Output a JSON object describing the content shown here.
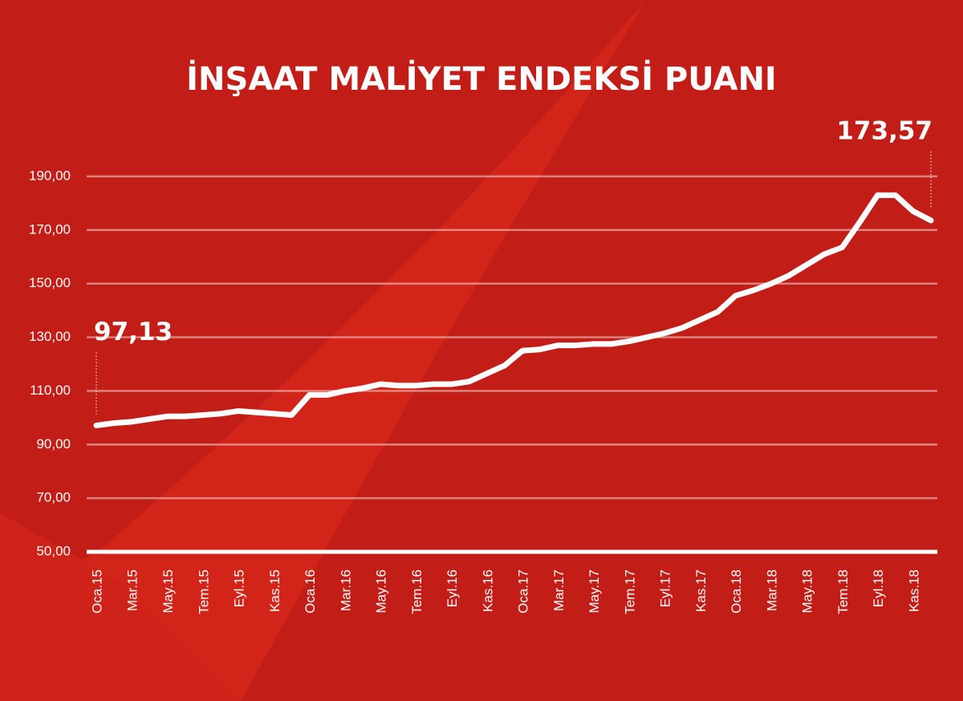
{
  "chart_data": {
    "type": "line",
    "title": "İNŞAAT MALİYET ENDEKSİ PUANI",
    "categories": [
      "Oca.15",
      null,
      "Mar.15",
      null,
      "May.15",
      null,
      "Tem.15",
      null,
      "Eyl.15",
      null,
      "Kas.15",
      null,
      "Oca.16",
      null,
      "Mar.16",
      null,
      "May.16",
      null,
      "Tem.16",
      null,
      "Eyl.16",
      null,
      "Kas.16",
      null,
      "Oca.17",
      null,
      "Mar.17",
      null,
      "May.17",
      null,
      "Tem.17",
      null,
      "Eyl.17",
      null,
      "Kas.17",
      null,
      "Oca.18",
      null,
      "Mar.18",
      null,
      "May.18",
      null,
      "Tem.18",
      null,
      "Eyl.18",
      null,
      "Kas.18",
      null
    ],
    "values": [
      97.13,
      98,
      98.5,
      99.5,
      100.5,
      100.5,
      101,
      101.5,
      102.5,
      102,
      101.5,
      101,
      108.5,
      108.5,
      110,
      111,
      112.5,
      112,
      112,
      112.5,
      112.5,
      113.5,
      116.5,
      119.5,
      125,
      125.5,
      127,
      127,
      127.5,
      127.5,
      128.5,
      130,
      131.5,
      133.5,
      136.5,
      139.5,
      145.5,
      147.5,
      150,
      153,
      157,
      161,
      163.5,
      173,
      183,
      183,
      177,
      173.57
    ],
    "value_labels": [
      "97,13",
      null,
      null,
      null,
      null,
      null,
      null,
      null,
      null,
      null,
      null,
      null,
      null,
      null,
      null,
      null,
      null,
      null,
      null,
      null,
      null,
      null,
      null,
      null,
      null,
      null,
      null,
      null,
      null,
      null,
      null,
      null,
      null,
      null,
      null,
      null,
      null,
      null,
      null,
      null,
      null,
      null,
      null,
      null,
      null,
      null,
      null,
      "173,57"
    ],
    "color": "#ffffff",
    "ylim": [
      50,
      200
    ],
    "yticks": [
      {
        "value": 50,
        "label": "50,00"
      },
      {
        "value": 70,
        "label": "70,00"
      },
      {
        "value": 90,
        "label": "90,00"
      },
      {
        "value": 110,
        "label": "110,00"
      },
      {
        "value": 130,
        "label": "130,00"
      },
      {
        "value": 150,
        "label": "150,00"
      },
      {
        "value": 170,
        "label": "170,00"
      },
      {
        "value": 190,
        "label": "190,00"
      }
    ],
    "grid": true
  }
}
